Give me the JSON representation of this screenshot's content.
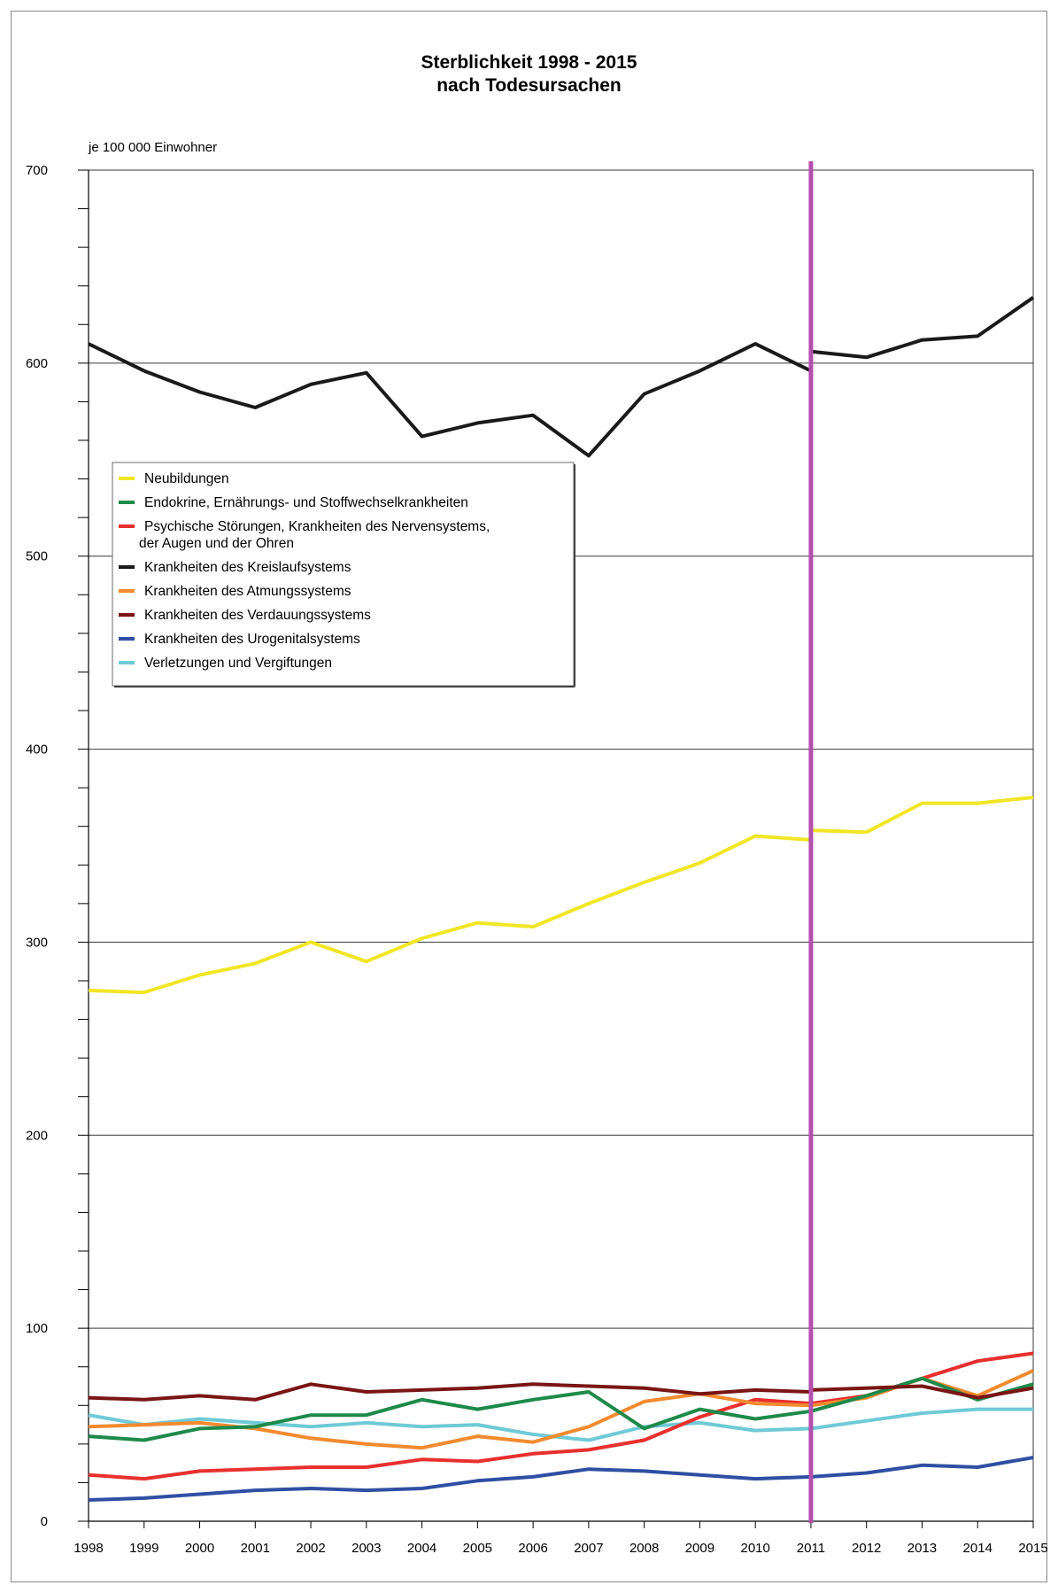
{
  "chart_data": {
    "type": "line",
    "title": "Sterblichkeit 1998 - 2015",
    "subtitle": "nach Todesursachen",
    "ylabel": "je 100 000 Einwohner",
    "xlabel": "",
    "ylim": [
      0,
      700
    ],
    "yticks": [
      0,
      100,
      200,
      300,
      400,
      500,
      600,
      700
    ],
    "grid": true,
    "legend_position": "upper-left",
    "break_year": "2011",
    "break_line_color": "#b44fae",
    "x": [
      "1998",
      "1999",
      "2000",
      "2001",
      "2002",
      "2003",
      "2004",
      "2005",
      "2006",
      "2007",
      "2008",
      "2009",
      "2010",
      "2011",
      "2012",
      "2013",
      "2014",
      "2015"
    ],
    "series": [
      {
        "name": "Neubildungen",
        "color": "#f0e626",
        "values": [
          275,
          274,
          283,
          289,
          300,
          290,
          302,
          310,
          308,
          320,
          331,
          341,
          355,
          353,
          357,
          372,
          372,
          375
        ],
        "value_2011_new": 358
      },
      {
        "name": "Endokrine, Ernährungs- und Stoffwechselkrankheiten",
        "color": "#1e8a4a",
        "values": [
          44,
          42,
          48,
          49,
          55,
          55,
          63,
          58,
          63,
          67,
          48,
          58,
          53,
          57,
          65,
          74,
          63,
          71
        ],
        "value_2011_new": 57
      },
      {
        "name": "Psychische Störungen, Krankheiten des Nervensystems, der Augen und der Ohren",
        "color": "#e8302e",
        "values": [
          24,
          22,
          26,
          27,
          28,
          28,
          32,
          31,
          35,
          37,
          42,
          54,
          63,
          61,
          65,
          74,
          83,
          87
        ],
        "value_2011_new": 61
      },
      {
        "name": "Krankheiten des Kreislaufsystems",
        "color": "#1a1a1a",
        "values": [
          610,
          596,
          585,
          577,
          589,
          595,
          562,
          569,
          573,
          552,
          584,
          596,
          610,
          596,
          603,
          612,
          614,
          634
        ],
        "value_2011_new": 606
      },
      {
        "name": "Krankheiten des Atmungssystems",
        "color": "#f28a30",
        "values": [
          49,
          50,
          51,
          48,
          43,
          40,
          38,
          44,
          41,
          49,
          62,
          66,
          61,
          60,
          64,
          74,
          65,
          78
        ],
        "value_2011_new": 60
      },
      {
        "name": "Krankheiten des Verdauungssystems",
        "color": "#7a1515",
        "values": [
          64,
          63,
          65,
          63,
          71,
          67,
          68,
          69,
          71,
          70,
          69,
          66,
          68,
          67,
          69,
          70,
          64,
          69
        ],
        "value_2011_new": 68
      },
      {
        "name": "Krankheiten des Urogenitalsystems",
        "color": "#2f4fa3",
        "values": [
          11,
          12,
          14,
          16,
          17,
          16,
          17,
          21,
          23,
          27,
          26,
          24,
          22,
          23,
          25,
          29,
          28,
          33
        ],
        "value_2011_new": 23
      },
      {
        "name": "Verletzungen und Vergiftungen",
        "color": "#6fcad6",
        "values": [
          55,
          50,
          53,
          51,
          49,
          51,
          49,
          50,
          45,
          42,
          49,
          51,
          47,
          48,
          52,
          56,
          58,
          58
        ],
        "value_2011_new": 48
      }
    ]
  }
}
